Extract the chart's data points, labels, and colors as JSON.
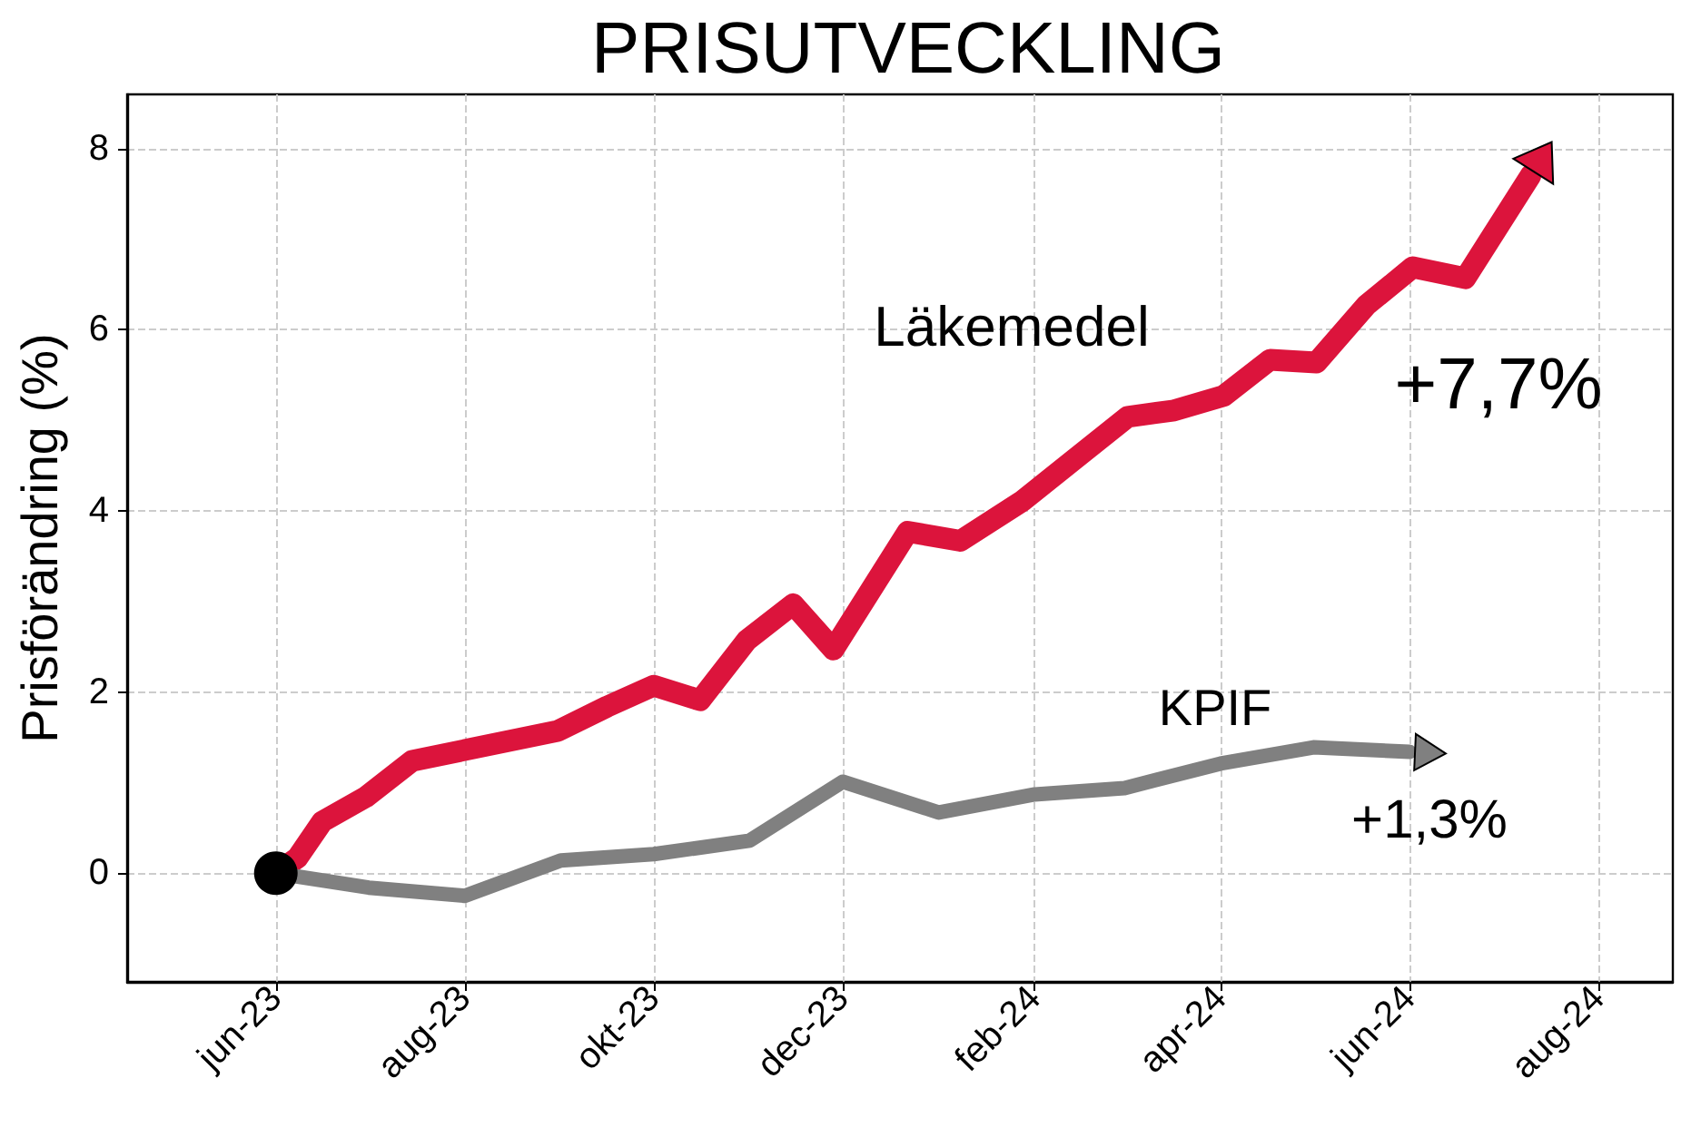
{
  "chart_data": {
    "type": "line",
    "title": "PRISUTVECKLING",
    "ylabel": "Prisförändring (%)",
    "series": [
      {
        "name": "Läkemedel",
        "color": "#dc143c",
        "x": [
          "2023-06-01",
          "2023-06-08",
          "2023-06-16",
          "2023-06-30",
          "2023-07-15",
          "2023-08-31",
          "2023-09-16",
          "2023-10-01",
          "2023-10-16",
          "2023-10-31",
          "2023-11-15",
          "2023-11-28",
          "2023-12-22",
          "2024-01-08",
          "2024-01-28",
          "2024-03-02",
          "2024-03-17",
          "2024-04-02",
          "2024-04-17",
          "2024-05-02",
          "2024-05-18",
          "2024-06-02",
          "2024-06-19",
          "2024-07-10"
        ],
        "values": [
          0,
          0.17,
          0.57,
          0.84,
          1.24,
          1.57,
          1.84,
          2.07,
          1.91,
          2.57,
          2.97,
          2.47,
          3.77,
          3.67,
          4.11,
          5.04,
          5.11,
          5.27,
          5.67,
          5.64,
          6.27,
          6.69,
          6.57,
          7.7
        ]
      },
      {
        "name": "KPIF",
        "color": "#808080",
        "x": [
          "2023-06-01",
          "2023-07-01",
          "2023-08-01",
          "2023-09-01",
          "2023-10-01",
          "2023-11-01",
          "2023-12-01",
          "2024-01-01",
          "2024-02-01",
          "2024-03-01",
          "2024-04-01",
          "2024-05-01",
          "2024-06-01"
        ],
        "values": [
          0,
          -0.16,
          -0.25,
          0.14,
          0.21,
          0.36,
          1.01,
          0.67,
          0.87,
          0.94,
          1.21,
          1.39,
          1.34
        ]
      },
      {
        "type": "scatter",
        "marker": "circle",
        "color": "#000000",
        "x": [
          "2023-06-01"
        ],
        "values": [
          0
        ]
      }
    ],
    "annotations": [
      "+7,7%",
      "+1,3%"
    ],
    "xlim": [
      "2023-04-14",
      "2024-08-25"
    ],
    "ylim": [
      -1.2,
      8.6
    ],
    "xticks": [
      {
        "value": "2023-06",
        "label": "jun-23"
      },
      {
        "value": "2023-08",
        "label": "aug-23"
      },
      {
        "value": "2023-10",
        "label": "okt-23"
      },
      {
        "value": "2023-12",
        "label": "dec-23"
      },
      {
        "value": "2024-02",
        "label": "feb-24"
      },
      {
        "value": "2024-04",
        "label": "apr-24"
      },
      {
        "value": "2024-06",
        "label": "jun-24"
      },
      {
        "value": "2024-08",
        "label": "aug-24"
      }
    ],
    "yticks": [
      0,
      2,
      4,
      6,
      8
    ],
    "grid": true,
    "line_style": "solid"
  }
}
